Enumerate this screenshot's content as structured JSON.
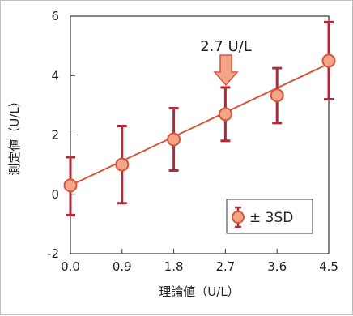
{
  "chart_data": {
    "type": "scatter",
    "xlabel": "理論値（U/L）",
    "ylabel": "測定値（U/L）",
    "xlim": [
      0.0,
      4.5
    ],
    "ylim": [
      -2,
      6
    ],
    "x_ticks": [
      "0.0",
      "0.9",
      "1.8",
      "2.7",
      "3.6",
      "4.5"
    ],
    "y_ticks": [
      "-2",
      "0",
      "2",
      "4",
      "6"
    ],
    "series": [
      {
        "name": "± 3SD",
        "x": [
          0.0,
          0.9,
          1.8,
          2.7,
          3.6,
          4.5
        ],
        "y": [
          0.3,
          1.0,
          1.85,
          2.7,
          3.33,
          4.5
        ],
        "err_low": [
          -0.7,
          -0.3,
          0.8,
          1.8,
          2.4,
          3.2
        ],
        "err_high": [
          1.25,
          2.3,
          2.9,
          3.6,
          4.25,
          5.8
        ]
      }
    ],
    "fit_line": {
      "from": [
        0.0,
        0.3
      ],
      "to": [
        4.5,
        4.4
      ]
    },
    "annotation": {
      "text": "2.7 U/L",
      "x": 2.7
    },
    "legend_position": "bottom-right",
    "grid": false,
    "colors": {
      "marker_fill": "#f4a487",
      "marker_stroke": "#d8553a",
      "errorbar": "#b02a3a",
      "fit_line": "#d8553a",
      "arrow_fill": "#f4a487",
      "arrow_stroke": "#d8553a"
    }
  }
}
